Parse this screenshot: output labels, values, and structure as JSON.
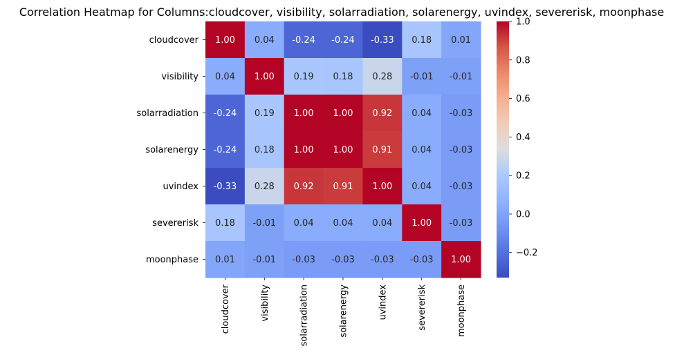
{
  "chart_data": {
    "type": "heatmap",
    "title": "Correlation Heatmap for Columns:cloudcover, visibility, solarradiation, solarenergy, uvindex, severerisk, moonphase",
    "xlabel": "",
    "ylabel": "",
    "x_categories": [
      "cloudcover",
      "visibility",
      "solarradiation",
      "solarenergy",
      "uvindex",
      "severerisk",
      "moonphase"
    ],
    "y_categories": [
      "cloudcover",
      "visibility",
      "solarradiation",
      "solarenergy",
      "uvindex",
      "severerisk",
      "moonphase"
    ],
    "values": [
      [
        1.0,
        0.04,
        -0.24,
        -0.24,
        -0.33,
        0.18,
        0.01
      ],
      [
        0.04,
        1.0,
        0.19,
        0.18,
        0.28,
        -0.01,
        -0.01
      ],
      [
        -0.24,
        0.19,
        1.0,
        1.0,
        0.92,
        0.04,
        -0.03
      ],
      [
        -0.24,
        0.18,
        1.0,
        1.0,
        0.91,
        0.04,
        -0.03
      ],
      [
        -0.33,
        0.28,
        0.92,
        0.91,
        1.0,
        0.04,
        -0.03
      ],
      [
        0.18,
        -0.01,
        0.04,
        0.04,
        0.04,
        1.0,
        -0.03
      ],
      [
        0.01,
        -0.01,
        -0.03,
        -0.03,
        -0.03,
        -0.03,
        1.0
      ]
    ],
    "value_labels": [
      [
        "1.00",
        "0.04",
        "-0.24",
        "-0.24",
        "-0.33",
        "0.18",
        "0.01"
      ],
      [
        "0.04",
        "1.00",
        "0.19",
        "0.18",
        "0.28",
        "-0.01",
        "-0.01"
      ],
      [
        "-0.24",
        "0.19",
        "1.00",
        "1.00",
        "0.92",
        "0.04",
        "-0.03"
      ],
      [
        "-0.24",
        "0.18",
        "1.00",
        "1.00",
        "0.91",
        "0.04",
        "-0.03"
      ],
      [
        "-0.33",
        "0.28",
        "0.92",
        "0.91",
        "1.00",
        "0.04",
        "-0.03"
      ],
      [
        "0.18",
        "-0.01",
        "0.04",
        "0.04",
        "0.04",
        "1.00",
        "-0.03"
      ],
      [
        "0.01",
        "-0.01",
        "-0.03",
        "-0.03",
        "-0.03",
        "-0.03",
        "1.00"
      ]
    ],
    "colormap": "coolwarm",
    "color_range": [
      -0.33,
      1.0
    ],
    "colorbar": {
      "ticks": [
        -0.2,
        0.0,
        0.2,
        0.4,
        0.6,
        0.8,
        1.0
      ],
      "tick_labels": [
        "−0.2",
        "0.0",
        "0.2",
        "0.4",
        "0.6",
        "0.8",
        "1.0"
      ],
      "placement": "right"
    },
    "annotated": true,
    "grid": false
  }
}
